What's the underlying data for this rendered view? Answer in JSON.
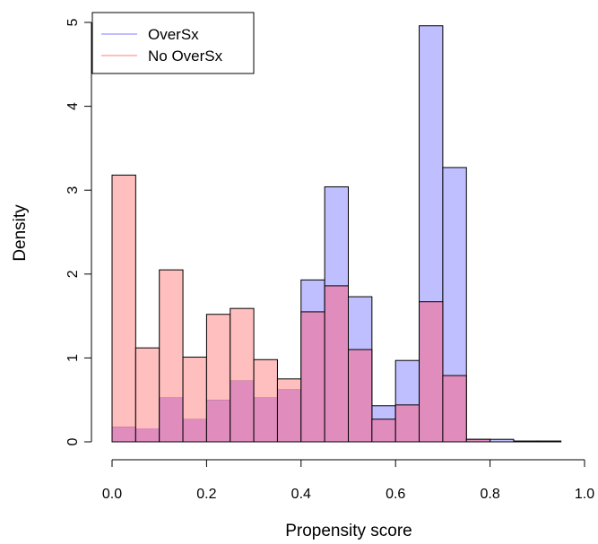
{
  "chart_data": {
    "type": "bar",
    "title": "",
    "xlabel": "Propensity score",
    "ylabel": "Density",
    "xlim": [
      0.0,
      1.0
    ],
    "ylim": [
      0,
      5
    ],
    "grid": false,
    "legend_position": "top-left",
    "bin_width": 0.05,
    "x_ticks": [
      "0.0",
      "0.2",
      "0.4",
      "0.6",
      "0.8",
      "1.0"
    ],
    "y_ticks": [
      "0",
      "1",
      "2",
      "3",
      "4",
      "5"
    ],
    "overlap_color": "#e08dbe",
    "series": [
      {
        "name": "OverSx",
        "color": "#bfbfff",
        "legend_line_color": "#9999ff",
        "bin_starts": [
          0.0,
          0.05,
          0.1,
          0.15,
          0.2,
          0.25,
          0.3,
          0.35,
          0.4,
          0.45,
          0.5,
          0.55,
          0.6,
          0.65,
          0.7,
          0.75,
          0.8,
          0.85,
          0.9
        ],
        "values": [
          0.18,
          0.16,
          0.53,
          0.27,
          0.5,
          0.73,
          0.53,
          0.63,
          1.93,
          3.04,
          1.73,
          0.43,
          0.97,
          4.96,
          3.27,
          0.03,
          0.03,
          0.01,
          0.01
        ]
      },
      {
        "name": "No OverSx",
        "color": "#ffbfbf",
        "legend_line_color": "#ff9999",
        "bin_starts": [
          0.0,
          0.05,
          0.1,
          0.15,
          0.2,
          0.25,
          0.3,
          0.35,
          0.4,
          0.45,
          0.5,
          0.55,
          0.6,
          0.65,
          0.7,
          0.75,
          0.8,
          0.85,
          0.9
        ],
        "values": [
          3.18,
          1.12,
          2.05,
          1.01,
          1.52,
          1.59,
          0.98,
          0.75,
          1.55,
          1.86,
          1.1,
          0.27,
          0.44,
          1.67,
          0.79,
          0.03,
          0.0,
          0.0,
          0.0
        ]
      }
    ]
  }
}
